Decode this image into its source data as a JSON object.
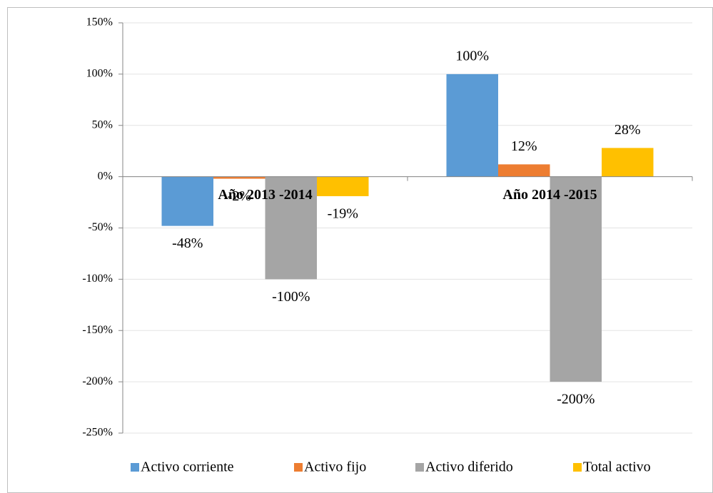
{
  "chart_data": {
    "type": "bar",
    "categories": [
      "Año 2013 -2014",
      "Año 2014 -2015"
    ],
    "series": [
      {
        "name": "Activo corriente",
        "color": "#5b9bd5",
        "values": [
          -48,
          100
        ],
        "value_labels": [
          "-48%",
          "100%"
        ]
      },
      {
        "name": "Activo fijo",
        "color": "#ed7d31",
        "values": [
          -2,
          12
        ],
        "value_labels": [
          "-2%",
          "12%"
        ]
      },
      {
        "name": "Activo diferido",
        "color": "#a5a5a5",
        "values": [
          -100,
          -200
        ],
        "value_labels": [
          "-100%",
          "-200%"
        ]
      },
      {
        "name": "Total activo",
        "color": "#ffc000",
        "values": [
          -19,
          28
        ],
        "value_labels": [
          "-19%",
          "28%"
        ]
      }
    ],
    "ylim": [
      -250,
      150
    ],
    "yticks": [
      {
        "value": -250,
        "label": "-250%"
      },
      {
        "value": -200,
        "label": "-200%"
      },
      {
        "value": -150,
        "label": "-150%"
      },
      {
        "value": -100,
        "label": "-100%"
      },
      {
        "value": -50,
        "label": "-50%"
      },
      {
        "value": 0,
        "label": "0%"
      },
      {
        "value": 50,
        "label": "50%"
      },
      {
        "value": 100,
        "label": "100%"
      },
      {
        "value": 150,
        "label": "150%"
      }
    ],
    "grid": true,
    "legend": "bottom"
  }
}
